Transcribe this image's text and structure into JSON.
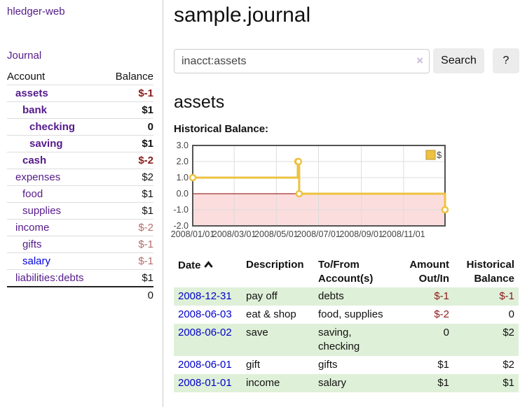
{
  "app": {
    "brand": "hledger-web"
  },
  "sidebar": {
    "nav": {
      "journal_label": "Journal"
    },
    "accounts_table": {
      "headers": {
        "account": "Account",
        "balance": "Balance"
      },
      "rows": [
        {
          "name": "assets",
          "depth": 1,
          "bold": true,
          "balance": "$-1",
          "neg": "strong"
        },
        {
          "name": "bank",
          "depth": 2,
          "bold": true,
          "balance": "$1"
        },
        {
          "name": "checking",
          "depth": 3,
          "bold": true,
          "balance": "0"
        },
        {
          "name": "saving",
          "depth": 3,
          "bold": true,
          "balance": "$1"
        },
        {
          "name": "cash",
          "depth": 2,
          "bold": true,
          "balance": "$-2",
          "neg": "strong"
        },
        {
          "name": "expenses",
          "depth": 1,
          "bold": false,
          "balance": "$2"
        },
        {
          "name": "food",
          "depth": 2,
          "bold": false,
          "balance": "$1"
        },
        {
          "name": "supplies",
          "depth": 2,
          "bold": false,
          "balance": "$1"
        },
        {
          "name": "income",
          "depth": 1,
          "bold": false,
          "balance": "$-2",
          "neg": "soft"
        },
        {
          "name": "gifts",
          "depth": 2,
          "bold": false,
          "balance": "$-1",
          "neg": "soft"
        },
        {
          "name": "salary",
          "depth": 2,
          "bold": false,
          "balance": "$-1",
          "neg": "soft",
          "link": "blue"
        },
        {
          "name": "liabilities:debts",
          "depth": 1,
          "bold": false,
          "balance": "$1"
        }
      ],
      "total": "0"
    }
  },
  "main": {
    "title": "sample.journal",
    "search": {
      "value": "inacct:assets",
      "clear_icon": "×",
      "search_button": "Search",
      "help_button": "?"
    },
    "account_heading": "assets",
    "chart_heading": "Historical Balance:",
    "register": {
      "headers": {
        "date": "Date",
        "description": "Description",
        "accounts": "To/From\nAccount(s)",
        "amount": "Amount\nOut/In",
        "balance": "Historical\nBalance"
      },
      "rows": [
        {
          "date": "2008-12-31",
          "description": "pay off",
          "accounts": "debts",
          "amount": "$-1",
          "amount_neg": true,
          "balance": "$-1",
          "balance_neg": true,
          "shaded": true
        },
        {
          "date": "2008-06-03",
          "description": "eat & shop",
          "accounts": "food, supplies",
          "amount": "$-2",
          "amount_neg": true,
          "balance": "0",
          "balance_neg": false,
          "shaded": false
        },
        {
          "date": "2008-06-02",
          "description": "save",
          "accounts": "saving,\nchecking",
          "amount": "0",
          "amount_neg": false,
          "balance": "$2",
          "balance_neg": false,
          "shaded": true
        },
        {
          "date": "2008-06-01",
          "description": "gift",
          "accounts": "gifts",
          "amount": "$1",
          "amount_neg": false,
          "balance": "$2",
          "balance_neg": false,
          "shaded": false
        },
        {
          "date": "2008-01-01",
          "description": "income",
          "accounts": "salary",
          "amount": "$1",
          "amount_neg": false,
          "balance": "$1",
          "balance_neg": false,
          "shaded": true
        }
      ]
    }
  },
  "chart_data": {
    "type": "line",
    "title": "Historical Balance",
    "step": true,
    "series": [
      {
        "name": "$",
        "points": [
          [
            "2008-01-01",
            1
          ],
          [
            "2008-06-01",
            2
          ],
          [
            "2008-06-02",
            2
          ],
          [
            "2008-06-03",
            0
          ],
          [
            "2008-12-31",
            -1
          ]
        ]
      }
    ],
    "x_range": [
      "2008-01-01",
      "2008-12-31"
    ],
    "x_ticks": [
      "2008/01/01",
      "2008/03/01",
      "2008/05/01",
      "2008/07/01",
      "2008/09/01",
      "2008/11/01"
    ],
    "y_ticks": [
      "3.0",
      "2.0",
      "1.0",
      "0.0",
      "-1.0",
      "-2.0"
    ],
    "ylim": [
      -2,
      3
    ],
    "grid": true,
    "legend_position": "top-right"
  },
  "colors": {
    "purple_link": "#551a8b",
    "blue_link": "#0000dd",
    "negative_strong": "#8b1a1a",
    "negative_soft": "#b36d6d",
    "row_shade_green": "#dff0d8",
    "series_gold": "#edc240",
    "zero_line_red": "#8b0000",
    "negative_region_pink": "#fbdddd",
    "grid_line": "#dcdcdc",
    "chart_border": "#545454",
    "button_gray": "#ececec"
  }
}
